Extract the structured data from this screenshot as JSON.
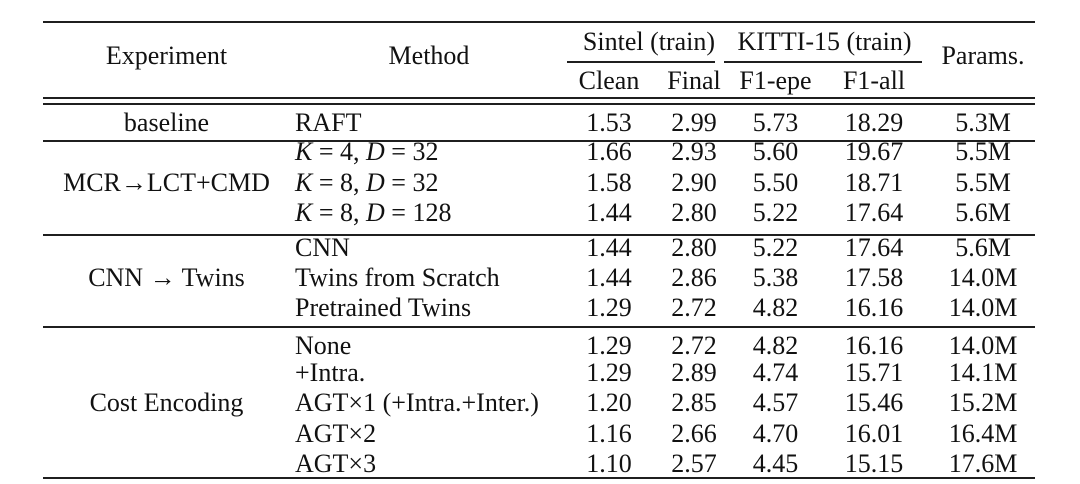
{
  "colors": {
    "background": "#ffffff",
    "text": "#111111",
    "rule": "#1f1f1f"
  },
  "table": {
    "header": {
      "experiment": "Experiment",
      "method": "Method",
      "sintel_span": "Sintel (train)",
      "kitti_span": "KITTI-15 (train)",
      "params": "Params.",
      "clean": "Clean",
      "final": "Final",
      "f1epe": "F1-epe",
      "f1all": "F1-all"
    },
    "groups": [
      {
        "label": "baseline",
        "rows": [
          {
            "method": "RAFT",
            "clean": "1.53",
            "final": "2.99",
            "f1epe": "5.73",
            "f1all": "18.29",
            "params": "5.3M"
          }
        ]
      },
      {
        "label": "MCR→LCT+CMD",
        "rows": [
          {
            "method": "K = 4, D = 32",
            "method_parts": [
              {
                "t": "K",
                "i": true
              },
              {
                "t": " = 4, ",
                "i": false
              },
              {
                "t": "D",
                "i": true
              },
              {
                "t": " = 32",
                "i": false
              }
            ],
            "clean": "1.66",
            "final": "2.93",
            "f1epe": "5.60",
            "f1all": "19.67",
            "params": "5.5M"
          },
          {
            "method": "K = 8, D = 32",
            "method_parts": [
              {
                "t": "K",
                "i": true
              },
              {
                "t": " = 8, ",
                "i": false
              },
              {
                "t": "D",
                "i": true
              },
              {
                "t": " = 32",
                "i": false
              }
            ],
            "clean": "1.58",
            "final": "2.90",
            "f1epe": "5.50",
            "f1all": "18.71",
            "params": "5.5M"
          },
          {
            "method": "K = 8, D = 128",
            "method_parts": [
              {
                "t": "K",
                "i": true
              },
              {
                "t": " = 8, ",
                "i": false
              },
              {
                "t": "D",
                "i": true
              },
              {
                "t": " = 128",
                "i": false
              }
            ],
            "clean": "1.44",
            "final": "2.80",
            "f1epe": "5.22",
            "f1all": "17.64",
            "params": "5.6M"
          }
        ]
      },
      {
        "label": "CNN → Twins",
        "rows": [
          {
            "method": "CNN",
            "clean": "1.44",
            "final": "2.80",
            "f1epe": "5.22",
            "f1all": "17.64",
            "params": "5.6M"
          },
          {
            "method": "Twins from Scratch",
            "clean": "1.44",
            "final": "2.86",
            "f1epe": "5.38",
            "f1all": "17.58",
            "params": "14.0M"
          },
          {
            "method": "Pretrained Twins",
            "clean": "1.29",
            "final": "2.72",
            "f1epe": "4.82",
            "f1all": "16.16",
            "params": "14.0M"
          }
        ]
      },
      {
        "label": "Cost Encoding",
        "rows": [
          {
            "method": "None",
            "clean": "1.29",
            "final": "2.72",
            "f1epe": "4.82",
            "f1all": "16.16",
            "params": "14.0M"
          },
          {
            "method": "+Intra.",
            "clean": "1.29",
            "final": "2.89",
            "f1epe": "4.74",
            "f1all": "15.71",
            "params": "14.1M"
          },
          {
            "method": "AGT×1 (+Intra.+Inter.)",
            "clean": "1.20",
            "final": "2.85",
            "f1epe": "4.57",
            "f1all": "15.46",
            "params": "15.2M"
          },
          {
            "method": "AGT×2",
            "clean": "1.16",
            "final": "2.66",
            "f1epe": "4.70",
            "f1all": "16.01",
            "params": "16.4M"
          },
          {
            "method": "AGT×3",
            "clean": "1.10",
            "final": "2.57",
            "f1epe": "4.45",
            "f1all": "15.15",
            "params": "17.6M"
          }
        ]
      }
    ]
  }
}
